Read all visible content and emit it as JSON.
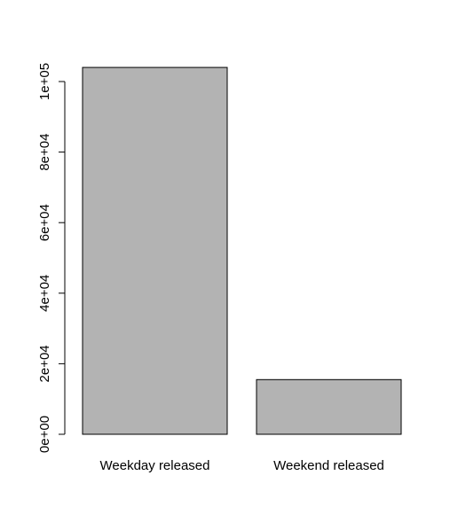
{
  "chart_data": {
    "type": "bar",
    "title": "",
    "xlabel": "",
    "ylabel": "",
    "categories": [
      "Weekday released",
      "Weekend released"
    ],
    "values": [
      104000,
      15500
    ],
    "ylim": [
      0,
      104000
    ],
    "yticks": [
      0,
      20000,
      40000,
      60000,
      80000,
      100000
    ],
    "ytick_labels": [
      "0e+00",
      "2e+04",
      "4e+04",
      "6e+04",
      "8e+04",
      "1e+05"
    ],
    "grid": false,
    "legend": "none",
    "colors": {
      "bar_fill": "#b3b3b3",
      "bar_stroke": "#000000",
      "axis": "#000000",
      "background": "#ffffff"
    }
  }
}
